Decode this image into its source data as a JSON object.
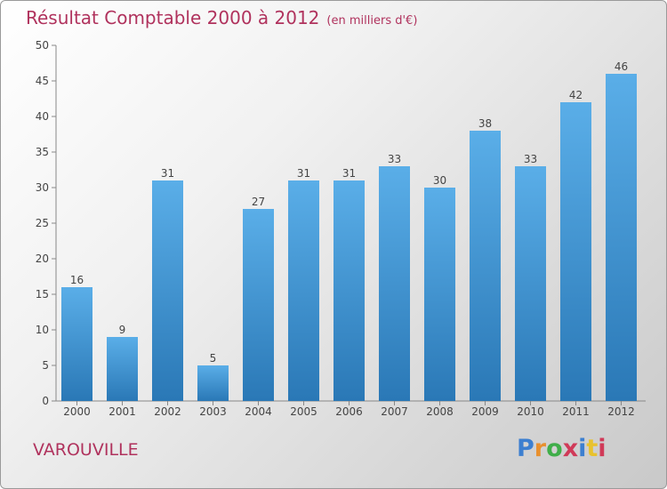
{
  "chart_data": {
    "type": "bar",
    "title": "Résultat Comptable 2000 à 2012",
    "subtitle": "(en milliers d'€)",
    "categories": [
      "2000",
      "2001",
      "2002",
      "2003",
      "2004",
      "2005",
      "2006",
      "2007",
      "2008",
      "2009",
      "2010",
      "2011",
      "2012"
    ],
    "values": [
      16,
      9,
      31,
      5,
      27,
      31,
      31,
      33,
      30,
      38,
      33,
      42,
      46
    ],
    "ylim": [
      0,
      50
    ],
    "yticks": [
      0,
      5,
      10,
      15,
      20,
      25,
      30,
      35,
      40,
      45,
      50
    ],
    "grid": false,
    "bar_color_top": "#5aaee8",
    "bar_color_bottom": "#2a78b6"
  },
  "place_name": "VAROUVILLE",
  "logo_text": "Proxiti",
  "colors": {
    "title": "#b0325d"
  }
}
